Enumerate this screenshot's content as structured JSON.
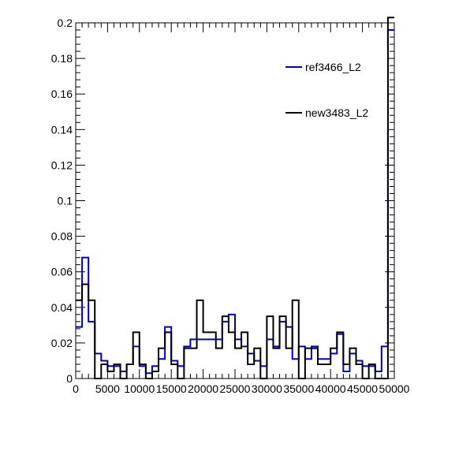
{
  "chart_data": {
    "type": "histogram-step",
    "title": "",
    "xlabel": "",
    "ylabel": "",
    "xlim": [
      0,
      50000
    ],
    "ylim": [
      0,
      0.2
    ],
    "bin_width": 1000,
    "x_ticks": [
      0,
      5000,
      10000,
      15000,
      20000,
      25000,
      30000,
      35000,
      40000,
      45000,
      50000
    ],
    "x_tick_labels": [
      "0",
      "5000",
      "10000",
      "15000",
      "20000",
      "25000",
      "30000",
      "35000",
      "40000",
      "45000",
      "50000"
    ],
    "y_ticks": [
      0,
      0.02,
      0.04,
      0.06,
      0.08,
      0.1,
      0.12,
      0.14,
      0.16,
      0.18,
      0.2
    ],
    "y_tick_labels": [
      "0",
      "0.02",
      "0.04",
      "0.06",
      "0.08",
      "0.1",
      "0.12",
      "0.14",
      "0.16",
      "0.18",
      "0.2"
    ],
    "legend_position": "top-right",
    "series": [
      {
        "name": "ref3466_L2",
        "color": "#0000cc",
        "values": [
          0.029,
          0.068,
          0.032,
          0.014,
          0.01,
          0.007,
          0.007,
          0.004,
          0.008,
          0.018,
          0.007,
          0.003,
          0.007,
          0.011,
          0.029,
          0.01,
          0.007,
          0.018,
          0.022,
          0.022,
          0.022,
          0.022,
          0.022,
          0.032,
          0.036,
          0.022,
          0.018,
          0.014,
          0.01,
          0.007,
          0.022,
          0.018,
          0.032,
          0.029,
          0.011,
          0.018,
          0.011,
          0.018,
          0.011,
          0.011,
          0.014,
          0.025,
          0.004,
          0.014,
          0.01,
          0.007,
          0.007,
          0.004,
          0.018,
          0.196
        ]
      },
      {
        "name": "new3483_L2",
        "color": "#000000",
        "values": [
          0.044,
          0.053,
          0.044,
          0.0,
          0.008,
          0.004,
          0.008,
          0.0,
          0.008,
          0.026,
          0.008,
          0.0,
          0.004,
          0.017,
          0.026,
          0.008,
          0.0,
          0.017,
          0.017,
          0.044,
          0.026,
          0.026,
          0.017,
          0.035,
          0.026,
          0.017,
          0.026,
          0.008,
          0.017,
          0.0,
          0.035,
          0.017,
          0.035,
          0.017,
          0.044,
          0.0,
          0.017,
          0.017,
          0.008,
          0.008,
          0.017,
          0.026,
          0.008,
          0.017,
          0.008,
          0.0,
          0.008,
          0.0,
          0.0,
          0.203
        ]
      }
    ]
  }
}
